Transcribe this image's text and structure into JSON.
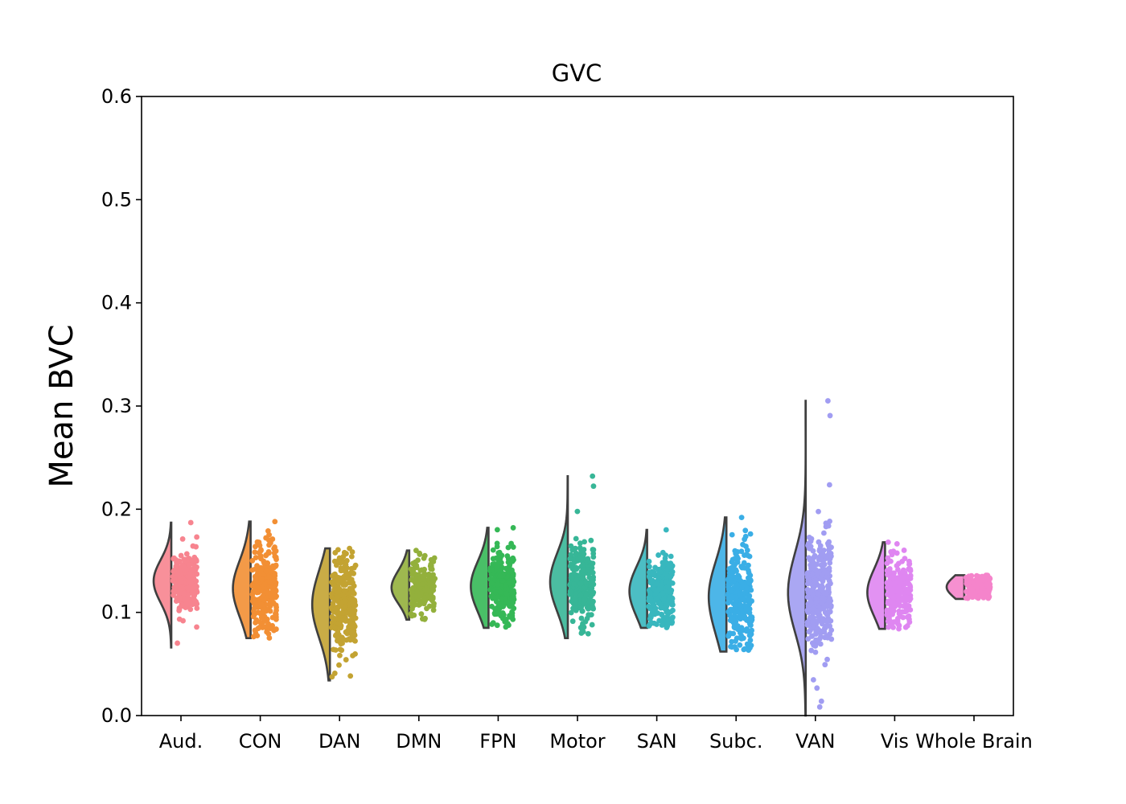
{
  "chart_data": {
    "type": "scatter",
    "subtype": "half-violin with jittered strip points",
    "title": "GVC",
    "xlabel": "",
    "ylabel": "Mean BVC",
    "ylim": [
      0.0,
      0.6
    ],
    "yticks": [
      "0.0",
      "0.1",
      "0.2",
      "0.3",
      "0.4",
      "0.5",
      "0.6"
    ],
    "grid": false,
    "legend": "none",
    "categories": [
      "Aud.",
      "CON",
      "DAN",
      "DMN",
      "FPN",
      "Motor",
      "SAN",
      "Subc.",
      "VAN",
      "Vis",
      "Whole Brain"
    ],
    "series": [
      {
        "category": "Aud.",
        "color": "#f7848f",
        "median": 0.13,
        "q1": 0.12,
        "q3": 0.14,
        "min": 0.066,
        "max": 0.187,
        "n": 260
      },
      {
        "category": "CON",
        "color": "#f28f34",
        "median": 0.125,
        "q1": 0.112,
        "q3": 0.138,
        "min": 0.075,
        "max": 0.188,
        "n": 280
      },
      {
        "category": "DAN",
        "color": "#c3a332",
        "median": 0.11,
        "q1": 0.095,
        "q3": 0.125,
        "min": 0.034,
        "max": 0.162,
        "n": 260
      },
      {
        "category": "DMN",
        "color": "#93b03c",
        "median": 0.125,
        "q1": 0.118,
        "q3": 0.132,
        "min": 0.093,
        "max": 0.16,
        "n": 200
      },
      {
        "category": "FPN",
        "color": "#35b856",
        "median": 0.125,
        "q1": 0.115,
        "q3": 0.138,
        "min": 0.085,
        "max": 0.182,
        "n": 240
      },
      {
        "category": "Motor",
        "color": "#37b697",
        "median": 0.13,
        "q1": 0.118,
        "q3": 0.145,
        "min": 0.075,
        "max": 0.232,
        "n": 260
      },
      {
        "category": "SAN",
        "color": "#38b7be",
        "median": 0.12,
        "q1": 0.11,
        "q3": 0.132,
        "min": 0.085,
        "max": 0.18,
        "n": 240
      },
      {
        "category": "Subc.",
        "color": "#3aaee6",
        "median": 0.115,
        "q1": 0.102,
        "q3": 0.135,
        "min": 0.062,
        "max": 0.192,
        "n": 250
      },
      {
        "category": "VAN",
        "color": "#a19df2",
        "median": 0.12,
        "q1": 0.102,
        "q3": 0.138,
        "min": 0.0,
        "max": 0.305,
        "n": 320
      },
      {
        "category": "Vis",
        "color": "#df86f1",
        "median": 0.12,
        "q1": 0.11,
        "q3": 0.132,
        "min": 0.084,
        "max": 0.168,
        "n": 220
      },
      {
        "category": "Whole Brain",
        "color": "#f584cb",
        "median": 0.125,
        "q1": 0.121,
        "q3": 0.129,
        "min": 0.113,
        "max": 0.136,
        "n": 130
      }
    ]
  }
}
